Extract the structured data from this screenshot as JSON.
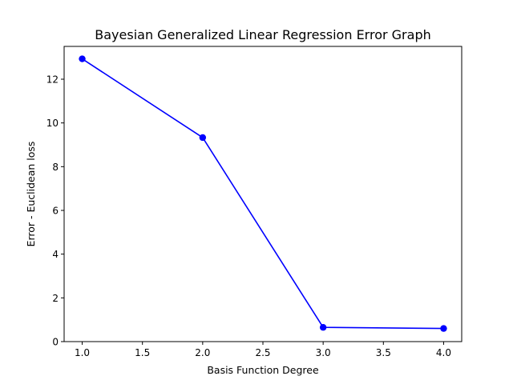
{
  "chart_data": {
    "type": "line",
    "title": "Bayesian Generalized Linear Regression Error Graph",
    "xlabel": "Basis Function Degree",
    "ylabel": "Error - Euclidean loss",
    "x": [
      1.0,
      2.0,
      3.0,
      4.0
    ],
    "series": [
      {
        "name": "",
        "values": [
          12.93,
          9.33,
          0.65,
          0.6
        ],
        "color": "#0000ff",
        "marker": "circle"
      }
    ],
    "xlim": [
      0.85,
      4.15
    ],
    "ylim": [
      0,
      13.5
    ],
    "xticks": [
      1.0,
      1.5,
      2.0,
      2.5,
      3.0,
      3.5,
      4.0
    ],
    "xtick_labels": [
      "1.0",
      "1.5",
      "2.0",
      "2.5",
      "3.0",
      "3.5",
      "4.0"
    ],
    "yticks": [
      0,
      2,
      4,
      6,
      8,
      10,
      12
    ],
    "ytick_labels": [
      "0",
      "2",
      "4",
      "6",
      "8",
      "10",
      "12"
    ],
    "grid": false,
    "legend": "none"
  }
}
